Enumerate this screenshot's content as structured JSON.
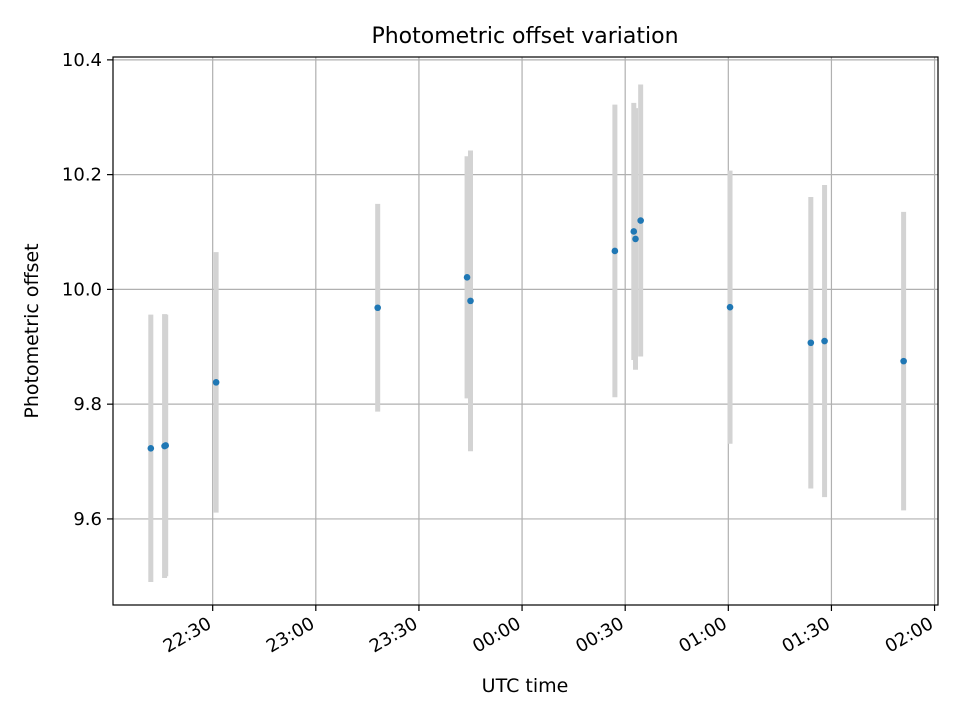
{
  "chart_data": {
    "type": "scatter",
    "title": "Photometric offset variation",
    "xlabel": "UTC time",
    "ylabel": "Photometric offset",
    "grid": true,
    "xlim": [
      "22:01:00",
      "02:01:00"
    ],
    "ylim": [
      9.45,
      10.405
    ],
    "x_ticks": [
      "22:30",
      "23:00",
      "23:30",
      "00:00",
      "00:30",
      "01:00",
      "01:30",
      "02:00"
    ],
    "y_ticks": [
      "9.6",
      "9.8",
      "10.0",
      "10.2",
      "10.4"
    ],
    "colors": {
      "points": "#1f77b4",
      "errorbars": "#d3d3d3",
      "grid": "#b0b0b0"
    },
    "points": [
      {
        "x": "22:12:00",
        "y": 9.723,
        "yerr": 0.233
      },
      {
        "x": "22:16:00",
        "y": 9.727,
        "yerr": 0.23
      },
      {
        "x": "22:16:20",
        "y": 9.728,
        "yerr": 0.228
      },
      {
        "x": "22:31:00",
        "y": 9.838,
        "yerr": 0.227
      },
      {
        "x": "23:18:00",
        "y": 9.968,
        "yerr": 0.181
      },
      {
        "x": "23:44:00",
        "y": 10.021,
        "yerr": 0.211
      },
      {
        "x": "23:45:00",
        "y": 9.98,
        "yerr": 0.262
      },
      {
        "x": "00:27:00",
        "y": 10.067,
        "yerr": 0.255
      },
      {
        "x": "00:32:30",
        "y": 10.101,
        "yerr": 0.224
      },
      {
        "x": "00:33:00",
        "y": 10.088,
        "yerr": 0.228
      },
      {
        "x": "00:34:30",
        "y": 10.12,
        "yerr": 0.237
      },
      {
        "x": "01:00:30",
        "y": 9.969,
        "yerr": 0.238
      },
      {
        "x": "01:24:00",
        "y": 9.907,
        "yerr": 0.254
      },
      {
        "x": "01:28:00",
        "y": 9.91,
        "yerr": 0.272
      },
      {
        "x": "01:51:00",
        "y": 9.875,
        "yerr": 0.26
      }
    ]
  }
}
